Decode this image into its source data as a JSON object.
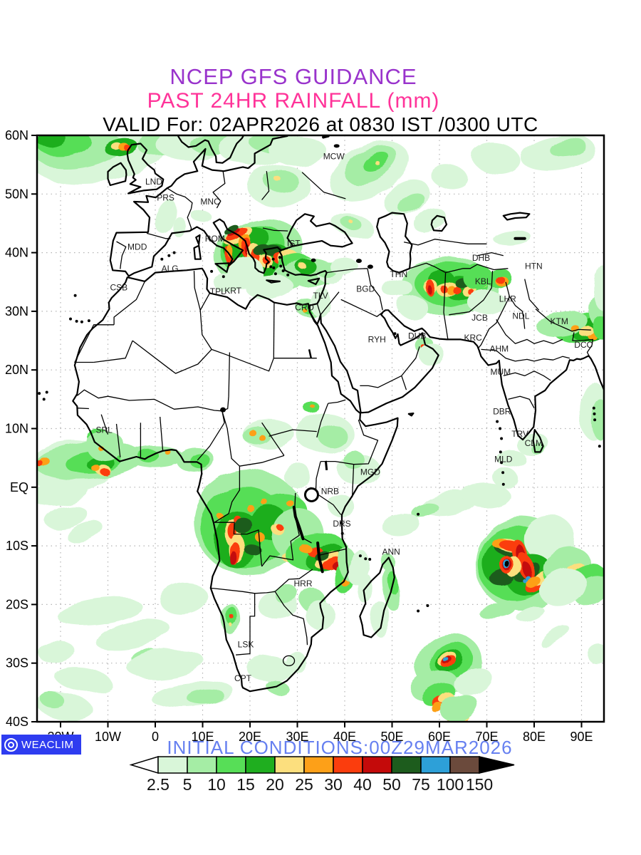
{
  "header": {
    "line1": "NCEP GFS GUIDANCE",
    "line2": "PAST 24HR RAINFALL (mm)",
    "line3": "VALID For: 02APR2026 at 0830 IST /0300 UTC",
    "line1_color": "#9933cc",
    "line2_color": "#ff3399",
    "line3_color": "#000000"
  },
  "map": {
    "lat_ticks": [
      "60N",
      "50N",
      "40N",
      "30N",
      "20N",
      "10N",
      "EQ",
      "10S",
      "20S",
      "30S",
      "40S"
    ],
    "lon_ticks": [
      "20W",
      "10W",
      "0",
      "10E",
      "20E",
      "30E",
      "40E",
      "50E",
      "60E",
      "70E",
      "80E",
      "90E"
    ],
    "stations": [
      {
        "code": "MCW",
        "lon": 37.7,
        "lat": 55.9
      },
      {
        "code": "LND",
        "lon": -0.3,
        "lat": 51.6
      },
      {
        "code": "PRS",
        "lon": 2.2,
        "lat": 48.9
      },
      {
        "code": "MNC",
        "lon": 11.6,
        "lat": 48.2
      },
      {
        "code": "MDD",
        "lon": -3.8,
        "lat": 40.5
      },
      {
        "code": "ROM",
        "lon": 12.6,
        "lat": 41.9
      },
      {
        "code": "IST",
        "lon": 29.2,
        "lat": 41.1
      },
      {
        "code": "ALG",
        "lon": 3.1,
        "lat": 36.8
      },
      {
        "code": "CSB",
        "lon": -7.7,
        "lat": 33.6
      },
      {
        "code": "TPL",
        "lon": 13.2,
        "lat": 32.9
      },
      {
        "code": "KRT",
        "lon": 16.4,
        "lat": 33.0
      },
      {
        "code": "CRO",
        "lon": 31.5,
        "lat": 30.2
      },
      {
        "code": "TLV",
        "lon": 34.9,
        "lat": 32.2
      },
      {
        "code": "BGD",
        "lon": 44.4,
        "lat": 33.3
      },
      {
        "code": "THN",
        "lon": 51.4,
        "lat": 35.8
      },
      {
        "code": "DHB",
        "lon": 68.8,
        "lat": 38.6
      },
      {
        "code": "KBL",
        "lon": 69.2,
        "lat": 34.6
      },
      {
        "code": "HTN",
        "lon": 79.9,
        "lat": 37.2
      },
      {
        "code": "LHR",
        "lon": 74.4,
        "lat": 31.6
      },
      {
        "code": "JCB",
        "lon": 68.5,
        "lat": 28.4
      },
      {
        "code": "NDL",
        "lon": 77.2,
        "lat": 28.7
      },
      {
        "code": "KTM",
        "lon": 85.3,
        "lat": 27.8
      },
      {
        "code": "DCC",
        "lon": 90.4,
        "lat": 23.8
      },
      {
        "code": "RYH",
        "lon": 46.8,
        "lat": 24.7
      },
      {
        "code": "DUB",
        "lon": 55.3,
        "lat": 25.3
      },
      {
        "code": "KRC",
        "lon": 67.1,
        "lat": 25.0
      },
      {
        "code": "AHM",
        "lon": 72.6,
        "lat": 23.1
      },
      {
        "code": "MUM",
        "lon": 72.9,
        "lat": 19.2
      },
      {
        "code": "DBR",
        "lon": 73.2,
        "lat": 12.4
      },
      {
        "code": "TRV",
        "lon": 77.0,
        "lat": 8.6
      },
      {
        "code": "CLM",
        "lon": 79.9,
        "lat": 7.0
      },
      {
        "code": "MLD",
        "lon": 73.5,
        "lat": 4.3
      },
      {
        "code": "MGD",
        "lon": 45.4,
        "lat": 2.1
      },
      {
        "code": "NRB",
        "lon": 36.9,
        "lat": -1.2
      },
      {
        "code": "DRS",
        "lon": 39.4,
        "lat": -6.7
      },
      {
        "code": "ANN",
        "lon": 49.8,
        "lat": -11.5
      },
      {
        "code": "HRR",
        "lon": 31.2,
        "lat": -16.9
      },
      {
        "code": "SRL",
        "lon": -10.8,
        "lat": 9.3
      },
      {
        "code": "LSK",
        "lon": 19.1,
        "lat": -27.3
      },
      {
        "code": "CPT",
        "lon": 18.5,
        "lat": -33.1
      }
    ]
  },
  "legend": {
    "values": [
      "2.5",
      "5",
      "10",
      "15",
      "20",
      "25",
      "30",
      "40",
      "50",
      "75",
      "100",
      "150"
    ],
    "colors": [
      "#d9f6d9",
      "#a5eda5",
      "#57de57",
      "#1fae1f",
      "#fcdf7e",
      "#fda018",
      "#fb3d0d",
      "#c40a0a",
      "#1d5c1d",
      "#2da0d8",
      "#6b4a3c"
    ],
    "below_color": "#ffffff",
    "above_color": "#000000",
    "extra_colors": {
      "blue": "#2da0d8",
      "black": "#000000"
    }
  },
  "footer": {
    "logo_text": "WEACLIM",
    "logo_bg": "#2e3cf0",
    "initial_conditions": "INITIAL CONDITIONS:00Z29MAR2026",
    "initial_color": "#6680f0"
  }
}
